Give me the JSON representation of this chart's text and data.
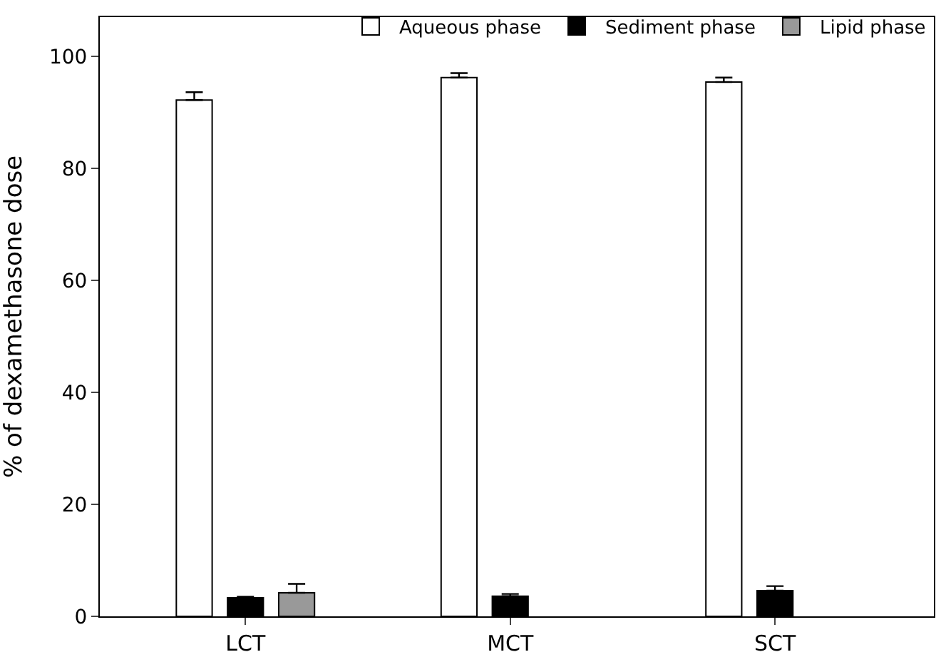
{
  "chart_data": {
    "type": "bar",
    "ylabel": "% of dexamethasone dose",
    "categories": [
      "LCT",
      "MCT",
      "SCT"
    ],
    "series": [
      {
        "name": "Aqueous phase",
        "color": "#ffffff",
        "values": [
          92.2,
          96.2,
          95.4
        ],
        "errors": [
          [
            92.2,
            93.6
          ],
          [
            96.2,
            97.0
          ],
          [
            95.4,
            96.2
          ]
        ]
      },
      {
        "name": "Sediment phase",
        "color": "#000000",
        "values": [
          3.3,
          3.6,
          4.6
        ],
        "errors": [
          [
            3.3,
            3.5
          ],
          [
            3.6,
            4.0
          ],
          [
            4.6,
            5.4
          ]
        ]
      },
      {
        "name": "Lipid phase",
        "color": "#999999",
        "values": [
          4.2,
          null,
          null
        ],
        "errors": [
          [
            4.2,
            5.8
          ],
          null,
          null
        ]
      }
    ],
    "ylim": [
      0,
      107
    ],
    "yticks": [
      0,
      20,
      40,
      60,
      80,
      100
    ],
    "legend": "top right"
  }
}
